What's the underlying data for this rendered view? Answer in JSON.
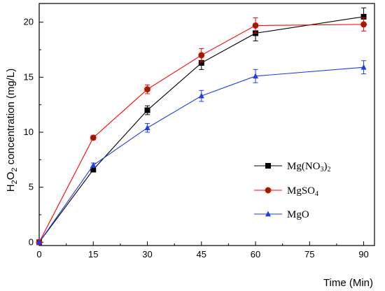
{
  "chart_data": {
    "type": "line",
    "xlabel": "Time (Min)",
    "ylabel": {
      "prefix": "H",
      "sub1": "2",
      "mid": "O",
      "sub2": "2",
      "suffix": " concentration (mg/L)"
    },
    "x_ticks": [
      0,
      15,
      30,
      45,
      60,
      75,
      90
    ],
    "y_ticks": [
      0,
      5,
      10,
      15,
      20
    ],
    "xlim": [
      0,
      93
    ],
    "ylim": [
      -0.3,
      21.7
    ],
    "grid": false,
    "legend_position": "center-right",
    "x": [
      0,
      15,
      30,
      45,
      60,
      90
    ],
    "series": [
      {
        "name": {
          "main": "Mg(NO",
          "sub1": "3",
          "mid": ")",
          "sub2": "2"
        },
        "values": [
          0,
          6.6,
          12.0,
          16.3,
          19.0,
          20.5
        ],
        "errors": [
          0,
          0.2,
          0.4,
          0.6,
          0.7,
          0.8
        ],
        "marker": "square",
        "color": "#000000",
        "line_color": "#000000"
      },
      {
        "name": {
          "main": "MgSO",
          "sub1": "4"
        },
        "values": [
          0,
          9.5,
          13.9,
          17.0,
          19.7,
          19.8
        ],
        "errors": [
          0,
          0.2,
          0.4,
          0.6,
          0.7,
          0.6
        ],
        "marker": "circle",
        "color": "#8B2500",
        "line_color": "#FF0000"
      },
      {
        "name": {
          "main": "MgO"
        },
        "values": [
          0,
          7.0,
          10.4,
          13.3,
          15.1,
          15.9
        ],
        "errors": [
          0,
          0.2,
          0.4,
          0.5,
          0.6,
          0.6
        ],
        "marker": "triangle",
        "color": "#1E3EE6",
        "line_color": "#1E3EE6"
      }
    ]
  }
}
